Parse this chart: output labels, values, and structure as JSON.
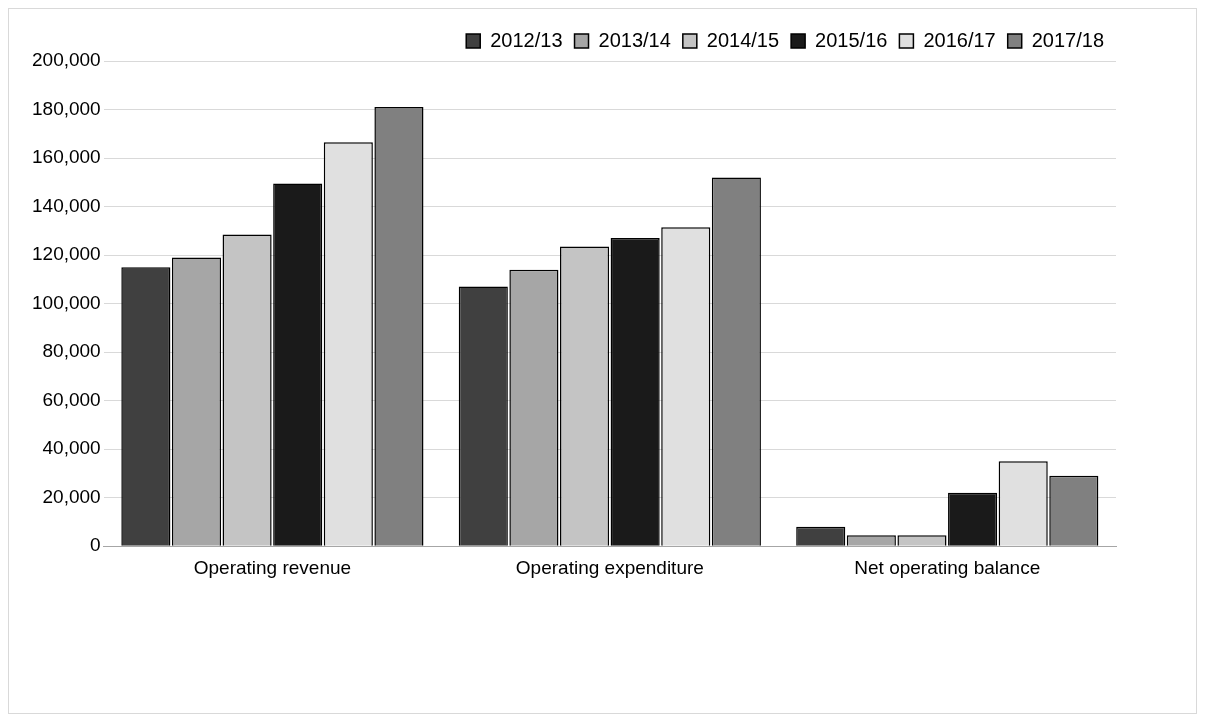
{
  "chart_data": {
    "type": "bar",
    "categories": [
      "Operating revenue",
      "Operating expenditure",
      "Net operating balance"
    ],
    "series": [
      {
        "name": "2012/13",
        "color": "#404040",
        "values": [
          115000,
          107000,
          8000
        ]
      },
      {
        "name": "2013/14",
        "color": "#a6a6a6",
        "values": [
          119000,
          114000,
          4500
        ]
      },
      {
        "name": "2014/15",
        "color": "#c4c4c4",
        "values": [
          128500,
          123500,
          4500
        ]
      },
      {
        "name": "2015/16",
        "color": "#1a1a1a",
        "values": [
          149500,
          127000,
          22000
        ]
      },
      {
        "name": "2016/17",
        "color": "#e0e0e0",
        "values": [
          166500,
          131500,
          35000
        ]
      },
      {
        "name": "2017/18",
        "color": "#808080",
        "values": [
          181000,
          152000,
          29000
        ]
      }
    ],
    "ylim": [
      0,
      200000
    ],
    "yticks": [
      {
        "value": 0,
        "label": "0"
      },
      {
        "value": 20000,
        "label": "20,000"
      },
      {
        "value": 40000,
        "label": "40,000"
      },
      {
        "value": 60000,
        "label": "60,000"
      },
      {
        "value": 80000,
        "label": "80,000"
      },
      {
        "value": 100000,
        "label": "100,000"
      },
      {
        "value": 120000,
        "label": "120,000"
      },
      {
        "value": 140000,
        "label": "140,000"
      },
      {
        "value": 160000,
        "label": "160,000"
      },
      {
        "value": 180000,
        "label": "180,000"
      },
      {
        "value": 200000,
        "label": "200,000"
      }
    ],
    "grid": "y",
    "legend": "top"
  }
}
